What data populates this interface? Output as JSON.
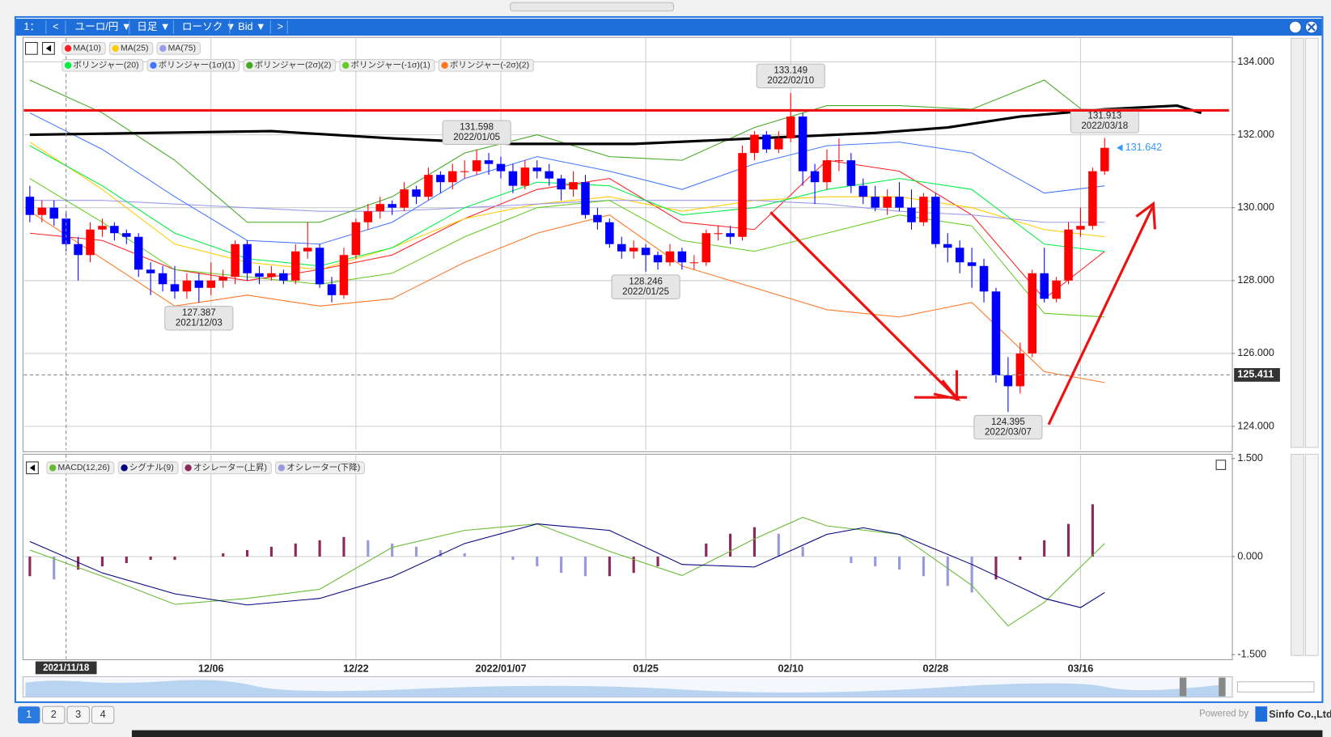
{
  "toolbar": [
    "1：",
    "<",
    "ユーロ/円 ▼",
    "日足 ▼",
    "ローソク ▼",
    "Bid ▼",
    ">"
  ],
  "tabs": [
    "1",
    "2",
    "3",
    "4"
  ],
  "footer": {
    "powered": "Powered by",
    "company": "Sinfo Co.,Ltd."
  },
  "chart_data": [
    {
      "type": "candlestick",
      "up_color": "#ff0000",
      "down_color": "#0000ff",
      "xlim": [
        -0.5,
        99.5
      ],
      "xticks": [
        {
          "value": 15,
          "label": "12/06"
        },
        {
          "value": 27,
          "label": "12/22"
        },
        {
          "value": 39,
          "label": "2022/01/07"
        },
        {
          "value": 51,
          "label": "01/25"
        },
        {
          "value": 63,
          "label": "02/10"
        },
        {
          "value": 75,
          "label": "02/28"
        },
        {
          "value": 87,
          "label": "03/16"
        }
      ],
      "ylim": [
        123.35,
        134.65
      ],
      "yticks": [
        {
          "value": 124,
          "label": "124.000"
        },
        {
          "value": 126,
          "label": "126.000"
        },
        {
          "value": 128,
          "label": "128.000"
        },
        {
          "value": 130,
          "label": "130.000"
        },
        {
          "value": 132,
          "label": "132.000"
        },
        {
          "value": 134,
          "label": "134.000"
        }
      ],
      "grid": true,
      "crosshair": {
        "y": 125.411,
        "x": {
          "value": 3,
          "label": "2021/11/18"
        }
      },
      "ohlc": [
        [
          130.3,
          130.6,
          129.6,
          129.8
        ],
        [
          129.8,
          130.2,
          129.6,
          130.0
        ],
        [
          130.0,
          130.2,
          129.5,
          129.7
        ],
        [
          129.7,
          129.9,
          128.8,
          129.0
        ],
        [
          129.0,
          129.2,
          128.0,
          128.7
        ],
        [
          128.7,
          129.6,
          128.5,
          129.4
        ],
        [
          129.4,
          129.7,
          129.2,
          129.5
        ],
        [
          129.5,
          129.6,
          129.1,
          129.3
        ],
        [
          129.3,
          129.4,
          129.0,
          129.2
        ],
        [
          129.2,
          129.3,
          128.1,
          128.3
        ],
        [
          128.3,
          128.5,
          127.6,
          128.2
        ],
        [
          128.2,
          128.4,
          127.7,
          127.9
        ],
        [
          127.9,
          128.4,
          127.5,
          127.7
        ],
        [
          127.7,
          128.2,
          127.5,
          128.0
        ],
        [
          128.0,
          128.2,
          127.387,
          127.8
        ],
        [
          127.8,
          128.5,
          127.6,
          128.0
        ],
        [
          128.0,
          128.3,
          127.8,
          128.1
        ],
        [
          128.1,
          129.1,
          127.9,
          129.0
        ],
        [
          129.0,
          129.1,
          128.0,
          128.2
        ],
        [
          128.2,
          128.4,
          127.9,
          128.1
        ],
        [
          128.1,
          128.4,
          128.0,
          128.2
        ],
        [
          128.2,
          128.3,
          127.9,
          128.0
        ],
        [
          128.0,
          129.0,
          127.9,
          128.8
        ],
        [
          128.8,
          129.6,
          128.6,
          128.9
        ],
        [
          128.9,
          129.0,
          127.8,
          127.9
        ],
        [
          127.9,
          128.1,
          127.4,
          127.6
        ],
        [
          127.6,
          128.9,
          127.5,
          128.7
        ],
        [
          128.7,
          129.7,
          128.6,
          129.6
        ],
        [
          129.6,
          130.1,
          129.4,
          129.9
        ],
        [
          129.9,
          130.3,
          129.7,
          130.1
        ],
        [
          130.1,
          130.2,
          129.8,
          130.0
        ],
        [
          130.0,
          130.7,
          129.9,
          130.5
        ],
        [
          130.5,
          130.6,
          130.1,
          130.3
        ],
        [
          130.3,
          131.1,
          130.2,
          130.9
        ],
        [
          130.9,
          131.0,
          130.4,
          130.7
        ],
        [
          130.7,
          131.2,
          130.5,
          131.0
        ],
        [
          131.0,
          131.3,
          130.8,
          131.0
        ],
        [
          131.0,
          131.598,
          130.9,
          131.3
        ],
        [
          131.3,
          131.5,
          130.9,
          131.2
        ],
        [
          131.2,
          131.4,
          130.8,
          131.0
        ],
        [
          131.0,
          131.2,
          130.4,
          130.6
        ],
        [
          130.6,
          131.3,
          130.5,
          131.1
        ],
        [
          131.1,
          131.3,
          130.8,
          131.0
        ],
        [
          131.0,
          131.2,
          130.6,
          130.8
        ],
        [
          130.8,
          130.9,
          130.2,
          130.5
        ],
        [
          130.5,
          131.0,
          130.3,
          130.7
        ],
        [
          130.7,
          130.9,
          129.7,
          129.8
        ],
        [
          129.8,
          130.0,
          129.4,
          129.6
        ],
        [
          129.6,
          129.7,
          128.9,
          129.0
        ],
        [
          129.0,
          129.2,
          128.6,
          128.8
        ],
        [
          128.8,
          129.1,
          128.6,
          128.9
        ],
        [
          128.9,
          129.0,
          128.246,
          128.7
        ],
        [
          128.7,
          128.8,
          128.3,
          128.5
        ],
        [
          128.5,
          129.0,
          128.4,
          128.8
        ],
        [
          128.8,
          128.9,
          128.3,
          128.5
        ],
        [
          128.5,
          128.7,
          128.3,
          128.5
        ],
        [
          128.5,
          129.4,
          128.4,
          129.3
        ],
        [
          129.3,
          129.5,
          129.1,
          129.3
        ],
        [
          129.3,
          129.5,
          129.0,
          129.2
        ],
        [
          129.2,
          131.7,
          129.1,
          131.5
        ],
        [
          131.5,
          132.1,
          131.3,
          132.0
        ],
        [
          132.0,
          132.1,
          131.5,
          131.6
        ],
        [
          131.6,
          132.1,
          131.5,
          131.9
        ],
        [
          131.9,
          133.149,
          131.8,
          132.5
        ],
        [
          132.5,
          132.6,
          130.6,
          131.0
        ],
        [
          131.0,
          131.2,
          130.1,
          130.7
        ],
        [
          130.7,
          131.6,
          130.5,
          131.3
        ],
        [
          131.3,
          131.9,
          131.0,
          131.3
        ],
        [
          131.3,
          131.5,
          130.4,
          130.6
        ],
        [
          130.6,
          130.8,
          130.1,
          130.3
        ],
        [
          130.3,
          130.6,
          129.9,
          130.0
        ],
        [
          130.0,
          130.5,
          129.8,
          130.3
        ],
        [
          130.3,
          130.7,
          129.9,
          130.0
        ],
        [
          130.0,
          130.5,
          129.4,
          129.6
        ],
        [
          129.6,
          130.4,
          129.5,
          130.3
        ],
        [
          130.3,
          130.4,
          128.9,
          129.0
        ],
        [
          129.0,
          129.3,
          128.5,
          128.9
        ],
        [
          128.9,
          129.1,
          128.2,
          128.5
        ],
        [
          128.5,
          128.9,
          127.8,
          128.4
        ],
        [
          128.4,
          128.6,
          127.4,
          127.7
        ],
        [
          127.7,
          127.8,
          125.2,
          125.4
        ],
        [
          125.4,
          125.9,
          124.395,
          125.1
        ],
        [
          125.1,
          126.3,
          124.9,
          126.0
        ],
        [
          126.0,
          128.3,
          125.9,
          128.2
        ],
        [
          128.2,
          128.9,
          127.4,
          127.5
        ],
        [
          127.5,
          128.1,
          127.4,
          128.0
        ],
        [
          128.0,
          129.6,
          127.9,
          129.4
        ],
        [
          129.4,
          130.0,
          129.2,
          129.5
        ],
        [
          129.5,
          131.1,
          129.4,
          131.0
        ],
        [
          131.0,
          131.913,
          130.9,
          131.642
        ]
      ],
      "annotations": [
        {
          "x": 14,
          "value": 127.387,
          "date": "2021/12/03"
        },
        {
          "x": 37,
          "value": 131.598,
          "date": "2022/01/05"
        },
        {
          "x": 51,
          "value": 128.246,
          "date": "2022/01/25"
        },
        {
          "x": 63,
          "value": 133.149,
          "date": "2022/02/10"
        },
        {
          "x": 81,
          "value": 124.395,
          "date": "2022/03/07"
        },
        {
          "x": 89,
          "value": 131.913,
          "date": "2022/03/18"
        }
      ],
      "series": [
        {
          "name": "MA(10)",
          "color": "#ff2020",
          "x": [
            0,
            6,
            12,
            18,
            24,
            30,
            36,
            42,
            48,
            54,
            60,
            66,
            72,
            78,
            84,
            89
          ],
          "values": [
            129.3,
            129.1,
            128.3,
            128.0,
            128.3,
            128.7,
            129.7,
            130.5,
            130.8,
            129.6,
            129.4,
            131.3,
            131.0,
            129.8,
            127.5,
            128.8
          ]
        },
        {
          "name": "MA(25)",
          "color": "#ffcc00",
          "x": [
            0,
            6,
            12,
            18,
            24,
            30,
            36,
            42,
            48,
            54,
            60,
            66,
            72,
            78,
            84,
            89
          ],
          "values": [
            131.8,
            130.5,
            129.0,
            128.5,
            128.3,
            128.9,
            129.7,
            130.1,
            130.3,
            129.9,
            130.2,
            130.3,
            130.3,
            130.0,
            129.4,
            129.2
          ]
        },
        {
          "name": "MA(75)",
          "color": "#9999ee",
          "x": [
            0,
            6,
            12,
            18,
            24,
            30,
            36,
            42,
            48,
            54,
            60,
            66,
            72,
            78,
            84,
            89
          ],
          "values": [
            130.2,
            130.2,
            130.1,
            130.0,
            129.9,
            129.9,
            130.0,
            130.1,
            130.2,
            130.2,
            130.2,
            130.1,
            129.9,
            129.8,
            129.6,
            129.6
          ]
        },
        {
          "name": "ボリンジャー(20)",
          "color": "#00ee44",
          "x": [
            0,
            6,
            12,
            18,
            24,
            30,
            36,
            42,
            48,
            54,
            60,
            66,
            72,
            78,
            84,
            89
          ],
          "values": [
            131.7,
            130.6,
            129.3,
            128.6,
            128.4,
            128.9,
            130.0,
            130.7,
            130.6,
            129.8,
            130.0,
            130.5,
            130.8,
            130.5,
            129.0,
            128.8
          ]
        },
        {
          "name": "ボリンジャー(1σ)(1)",
          "color": "#4477ff",
          "x": [
            0,
            6,
            12,
            18,
            24,
            30,
            36,
            42,
            48,
            54,
            60,
            66,
            72,
            78,
            84,
            89
          ],
          "values": [
            132.6,
            131.6,
            130.3,
            129.1,
            129.0,
            129.6,
            130.8,
            131.4,
            131.0,
            130.5,
            131.2,
            131.7,
            131.8,
            131.5,
            130.4,
            130.6
          ]
        },
        {
          "name": "ボリンジャー(2σ)(2)",
          "color": "#44aa22",
          "x": [
            0,
            6,
            12,
            18,
            24,
            30,
            36,
            42,
            48,
            54,
            60,
            66,
            72,
            78,
            84,
            89
          ],
          "values": [
            133.5,
            132.6,
            131.3,
            129.6,
            129.6,
            130.3,
            131.5,
            132.0,
            131.4,
            131.3,
            132.2,
            132.8,
            132.8,
            132.7,
            133.5,
            132.2
          ]
        },
        {
          "name": "ボリンジャー(-1σ)(1)",
          "color": "#66cc22",
          "x": [
            0,
            6,
            12,
            18,
            24,
            30,
            36,
            42,
            48,
            54,
            60,
            66,
            72,
            78,
            84,
            89
          ],
          "values": [
            130.8,
            129.6,
            128.3,
            128.1,
            127.9,
            128.2,
            129.2,
            130.0,
            130.2,
            129.1,
            128.8,
            129.3,
            129.8,
            129.5,
            127.1,
            127.0
          ]
        },
        {
          "name": "ボリンジャー(-2σ)(2)",
          "color": "#ff7722",
          "x": [
            0,
            6,
            12,
            18,
            24,
            30,
            36,
            42,
            48,
            54,
            60,
            66,
            72,
            78,
            84,
            89
          ],
          "values": [
            129.9,
            128.6,
            127.3,
            127.6,
            127.3,
            127.5,
            128.5,
            129.3,
            129.8,
            128.4,
            127.8,
            127.2,
            127.0,
            127.4,
            125.5,
            125.2
          ]
        },
        {
          "color": "#000000",
          "width": 3,
          "x": [
            0,
            10,
            20,
            30,
            40,
            50,
            60,
            70,
            76,
            82,
            89,
            95,
            97
          ],
          "values": [
            132.0,
            132.05,
            132.1,
            131.9,
            131.75,
            131.75,
            131.9,
            132.05,
            132.2,
            132.5,
            132.7,
            132.8,
            132.6
          ]
        }
      ]
    },
    {
      "type": "macd",
      "xlim": [
        -0.5,
        99.5
      ],
      "ylim": [
        -1.565,
        1.565
      ],
      "yticks": [
        {
          "value": -1.5,
          "label": "-1.500"
        },
        {
          "value": 0,
          "label": "0.000"
        },
        {
          "value": 1.5,
          "label": "1.500"
        }
      ],
      "series": [
        {
          "name": "MACD(12,26)",
          "color": "#66bb33",
          "x": [
            0,
            6,
            12,
            18,
            24,
            30,
            36,
            42,
            48,
            54,
            60,
            64,
            66,
            72,
            78,
            81,
            84,
            89
          ],
          "values": [
            0.1,
            -0.3,
            -0.73,
            -0.64,
            -0.5,
            0.14,
            0.4,
            0.5,
            0.08,
            -0.29,
            0.27,
            0.6,
            0.47,
            0.34,
            -0.44,
            -1.06,
            -0.7,
            0.2
          ]
        },
        {
          "name": "シグナル(9)",
          "color": "#000080",
          "x": [
            0,
            6,
            12,
            18,
            24,
            30,
            36,
            42,
            48,
            54,
            60,
            66,
            69,
            72,
            78,
            84,
            87,
            89
          ],
          "values": [
            0.23,
            -0.25,
            -0.57,
            -0.74,
            -0.64,
            -0.31,
            0.2,
            0.5,
            0.4,
            -0.12,
            -0.16,
            0.34,
            0.44,
            0.34,
            -0.12,
            -0.64,
            -0.78,
            -0.55
          ]
        }
      ],
      "oscillator": {
        "names": [
          "オシレーター(上昇)",
          "オシレーター(下降)"
        ],
        "colors": [
          "#8b2a5a",
          "#9999dd"
        ],
        "x": [
          0,
          2,
          4,
          6,
          8,
          10,
          12,
          14,
          16,
          18,
          20,
          22,
          24,
          26,
          28,
          30,
          32,
          34,
          36,
          38,
          40,
          42,
          44,
          46,
          48,
          50,
          52,
          54,
          56,
          58,
          60,
          62,
          64,
          66,
          68,
          70,
          72,
          74,
          76,
          78,
          80,
          82,
          84,
          86,
          88
        ],
        "values": [
          -0.3,
          -0.35,
          -0.2,
          -0.15,
          -0.1,
          -0.05,
          -0.05,
          0.0,
          0.05,
          0.1,
          0.15,
          0.2,
          0.25,
          0.3,
          0.25,
          0.2,
          0.15,
          0.1,
          0.05,
          0.0,
          -0.05,
          -0.15,
          -0.25,
          -0.3,
          -0.3,
          -0.25,
          -0.15,
          0.0,
          0.2,
          0.35,
          0.45,
          0.35,
          0.15,
          0.0,
          -0.1,
          -0.15,
          -0.2,
          -0.3,
          -0.45,
          -0.55,
          -0.35,
          -0.05,
          0.25,
          0.5,
          0.8
        ]
      }
    }
  ]
}
